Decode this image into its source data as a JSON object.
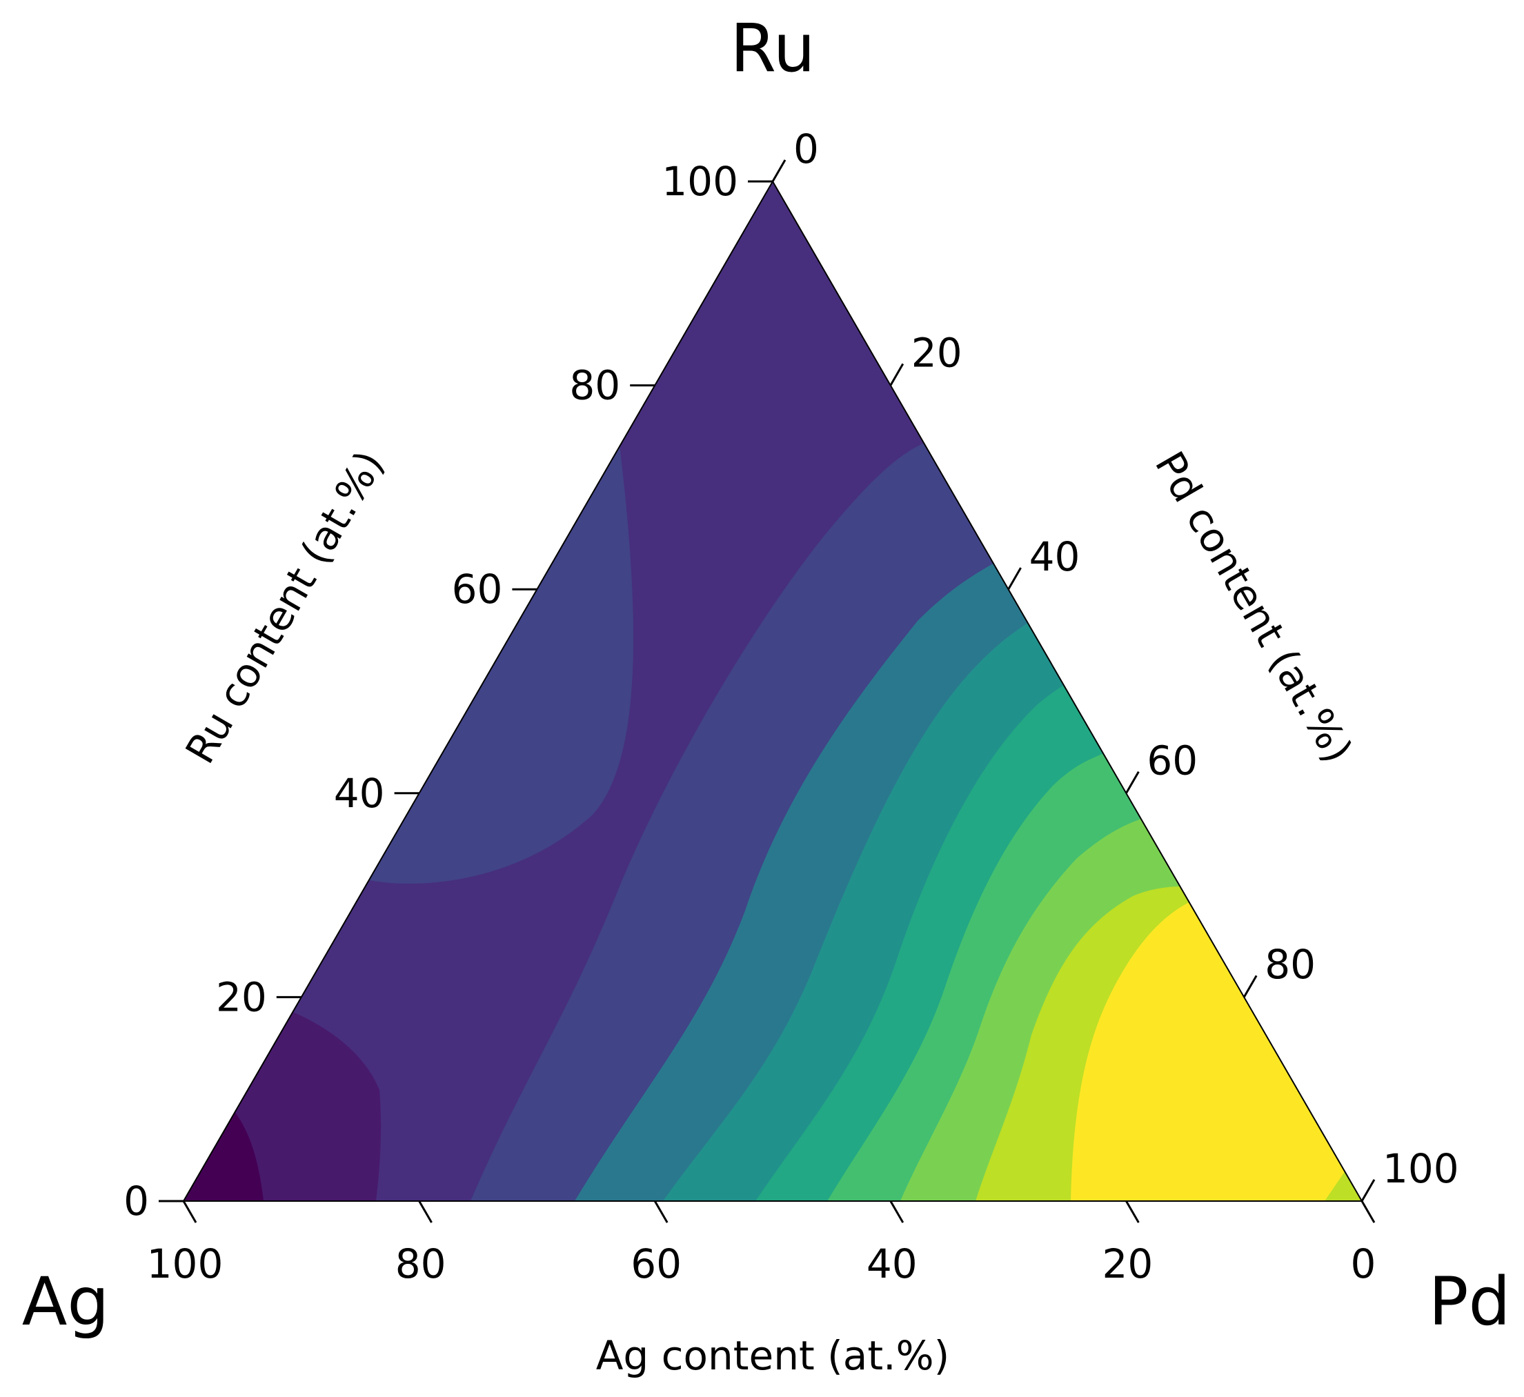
{
  "chart_data": {
    "type": "ternary-contour",
    "title": "",
    "vertices": {
      "top": "Ru",
      "left": "Ag",
      "right": "Pd"
    },
    "axes": [
      {
        "component": "Ru",
        "label": "Ru content (at.%)",
        "side": "left",
        "range": [
          0,
          100
        ],
        "ticks": [
          0,
          20,
          40,
          60,
          80,
          100
        ]
      },
      {
        "component": "Pd",
        "label": "Pd content (at.%)",
        "side": "right",
        "range": [
          0,
          100
        ],
        "ticks": [
          0,
          20,
          40,
          60,
          80,
          100
        ]
      },
      {
        "component": "Ag",
        "label": "Ag content (at.%)",
        "side": "bottom",
        "range": [
          0,
          100
        ],
        "ticks": [
          100,
          80,
          60,
          40,
          20,
          0
        ]
      }
    ],
    "colormap": "viridis",
    "levels": [
      "#440154",
      "#481a6c",
      "#472f7d",
      "#414487",
      "#39568c",
      "#2a788e",
      "#21918c",
      "#22a884",
      "#44bf70",
      "#7ad151",
      "#bddf26",
      "#fde725"
    ],
    "description_regions": [
      {
        "level": 0,
        "region": "Ag corner"
      },
      {
        "level": 1,
        "region": "Ag-rich, low Ru"
      },
      {
        "level": 2,
        "region": "broad band across center and Ru apex"
      },
      {
        "level": 3,
        "region": "Ru-rich/Ag side lobe and middle band"
      },
      {
        "level": 9,
        "region": "Pd corner"
      }
    ]
  },
  "labels": {
    "ru": "Ru",
    "ag": "Ag",
    "pd": "Pd",
    "left_title": "Ru content (at.%)",
    "right_title": "Pd content (at.%)",
    "bottom_title": "Ag content (at.%)"
  }
}
